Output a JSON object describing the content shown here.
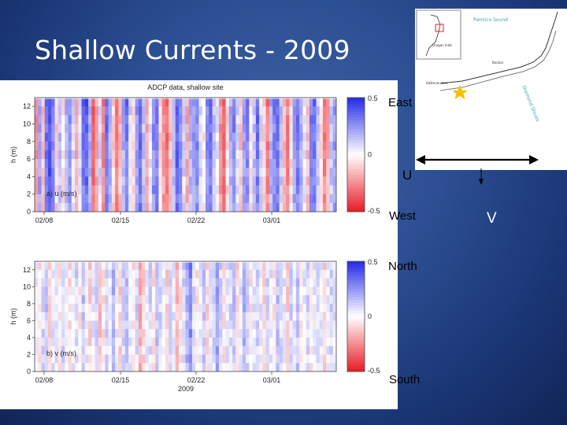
{
  "slide": {
    "title": "Shallow Currents - 2009"
  },
  "direction_labels": {
    "east": "East",
    "west": "West",
    "north": "North",
    "south": "South",
    "u": "U",
    "v": "V"
  },
  "map": {
    "labels": [
      "Pamlico Sound",
      "Buxton",
      "Hatteras Inlet",
      "Diamond Shoals",
      "Oregon Inlet"
    ]
  },
  "colors": {
    "positive": "#2a2ee8",
    "negative": "#e8202a",
    "zero": "#ffffff",
    "star": "#f2c200",
    "background": "#1f3c7e"
  },
  "chart_data": [
    {
      "type": "heatmap",
      "title": "ADCP data, shallow site",
      "panel_label": "a) u (m/s)",
      "ylabel": "h (m)",
      "xlabel": "",
      "yticks": [
        "0",
        "2",
        "4",
        "6",
        "8",
        "10",
        "12"
      ],
      "ylim": [
        0,
        13
      ],
      "xticks": [
        "02/08",
        "02/15",
        "02/22",
        "03/01"
      ],
      "colorbar": {
        "ticks": [
          "0.5",
          "0",
          "-0.5"
        ],
        "range": [
          -0.5,
          0.5
        ]
      },
      "columns_u": [
        -0.25,
        0.25,
        -0.15,
        0.35,
        0.45,
        0.3,
        -0.1,
        0.15,
        -0.05,
        0.2,
        0.3,
        0.1,
        -0.2,
        0.05,
        0.35,
        0.4,
        0.2,
        -0.35,
        -0.2,
        0.1,
        -0.3,
        0.35,
        0.2,
        -0.1,
        -0.3,
        -0.15,
        0.2,
        0.35,
        0.1,
        -0.1,
        0.25,
        0.4,
        0.15,
        -0.2,
        0.05,
        0.3,
        0.35,
        -0.1,
        -0.25,
        -0.35,
        -0.15,
        0.2,
        0.4,
        0.3,
        0.1,
        -0.2,
        0.2,
        0.25,
        0.3,
        0.1,
        -0.05,
        0.3,
        0.35,
        0.15,
        0.05,
        -0.25,
        -0.35,
        -0.1,
        0.2,
        0.3,
        0.1,
        -0.15,
        0.25,
        0.3,
        -0.05,
        0.15,
        0.35,
        0.1,
        -0.1,
        -0.3,
        0.2,
        0.3,
        0.35,
        0.15,
        -0.15,
        -0.3,
        -0.1,
        0.25,
        0.35,
        0.2,
        0.05,
        -0.15,
        0.3,
        0.35,
        0.15,
        -0.05,
        -0.3,
        -0.2,
        0.15,
        0.25
      ]
    },
    {
      "type": "heatmap",
      "title": "",
      "panel_label": "b) v (m/s)",
      "ylabel": "h (m)",
      "xlabel": "2009",
      "yticks": [
        "0",
        "2",
        "4",
        "6",
        "8",
        "10",
        "12"
      ],
      "ylim": [
        0,
        13
      ],
      "xticks": [
        "02/08",
        "02/15",
        "02/22",
        "03/01"
      ],
      "colorbar": {
        "ticks": [
          "0.5",
          "0",
          "-0.5"
        ],
        "range": [
          -0.5,
          0.5
        ]
      },
      "columns_v": [
        0.05,
        -0.05,
        0.1,
        0.15,
        -0.1,
        0.05,
        0.08,
        -0.05,
        0.1,
        0.05,
        -0.08,
        0.05,
        0.1,
        -0.05,
        0.15,
        0.05,
        -0.1,
        0.05,
        0.1,
        -0.15,
        -0.05,
        0.1,
        0.05,
        0.2,
        0.05,
        -0.1,
        0.1,
        0.15,
        0.05,
        -0.05,
        0.1,
        -0.2,
        -0.1,
        0.05,
        0.1,
        -0.05,
        0.15,
        0.1,
        0.05,
        -0.1,
        0.1,
        0.05,
        -0.15,
        -0.05,
        0.1,
        0.2,
        0.3,
        0.1,
        -0.05,
        0.05,
        0.15,
        -0.1,
        0.05,
        0.1,
        0.25,
        0.1,
        -0.05,
        0.05,
        0.1,
        0.15,
        -0.1,
        0.05,
        0.2,
        0.1,
        -0.05,
        0.05,
        0.1,
        0.05,
        -0.1,
        0.1,
        0.05,
        -0.05,
        0.15,
        0.1,
        0.05,
        -0.1,
        0.1,
        0.05,
        0.15,
        -0.05,
        0.05,
        0.1,
        -0.05,
        0.05,
        0.1,
        0.05,
        -0.1,
        0.05,
        0.1,
        0.05
      ]
    }
  ]
}
